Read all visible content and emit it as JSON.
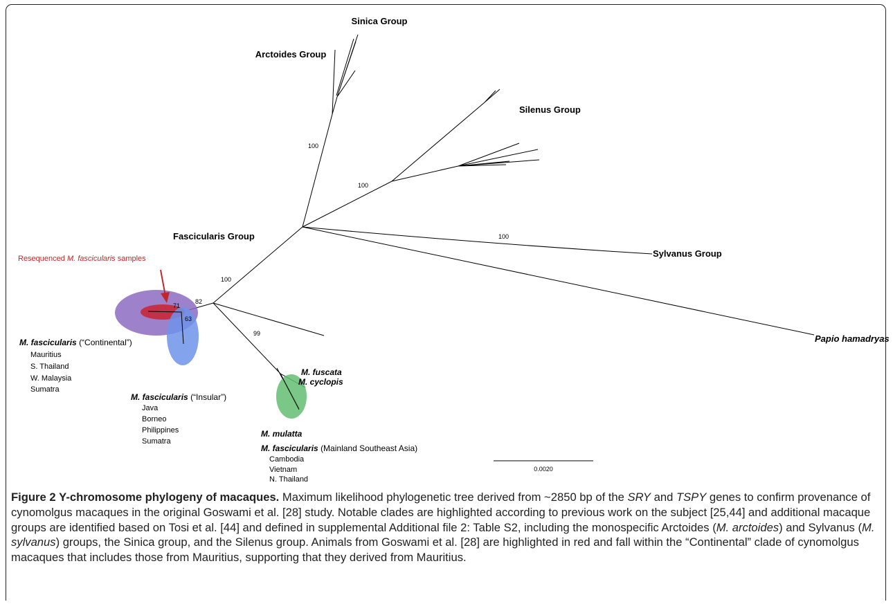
{
  "groups": {
    "sinica": "Sinica Group",
    "arctoides": "Arctoides Group",
    "silenus": "Silenus Group",
    "fascicularis": "Fascicularis Group",
    "sylvanus": "Sylvanus Group"
  },
  "outgroup": "Papio hamadryas",
  "bootstrap": [
    100,
    100,
    100,
    100,
    82,
    71,
    63,
    99
  ],
  "annotation": [
    "Resequenced",
    "M. fascicularis",
    "samples"
  ],
  "clades": [
    {
      "species": "M. fascicularis",
      "qualifier": "(“Continental”)",
      "locations": [
        "Mauritius",
        "S. Thailand",
        "W. Malaysia",
        "Sumatra"
      ]
    },
    {
      "species": "M. fascicularis",
      "qualifier": "(“Insular”)",
      "locations": [
        "Java",
        "Borneo",
        "Philippines",
        "Sumatra"
      ]
    },
    {
      "species": "M. fascicularis",
      "qualifier": "(Mainland Southeast Asia)",
      "locations": [
        "Cambodia",
        "Vietnam",
        "N. Thailand"
      ]
    }
  ],
  "species": [
    "M. fuscata",
    "M. cyclopis",
    "M. mulatta"
  ],
  "scale_bar": "0.0020",
  "caption": {
    "label": "Figure 2",
    "title": "Y-chromosome phylogeny of macaques.",
    "body": [
      "Maximum likelihood phylogenetic tree derived from ~2850 bp of the",
      "SRY",
      "and",
      "TSPY",
      "genes to confirm provenance of cynomolgus macaques in the original Goswami et al. [28] study. Notable clades are highlighted according to previous work on the subject [25,44] and additional macaque groups are identified based on Tosi et al. [44] and defined in supplemental Additional file 2: Table S2, including the monospecific Arctoides (",
      "M. arctoides",
      ") and Sylvanus (",
      "M. sylvanus",
      ") groups, the Sinica group, and the Silenus group. Animals from Goswami et al. [28] are highlighted in red and fall within the “Continental” clade of cynomolgus macaques that includes those from Mauritius, supporting that they derived from Mauritius."
    ]
  }
}
